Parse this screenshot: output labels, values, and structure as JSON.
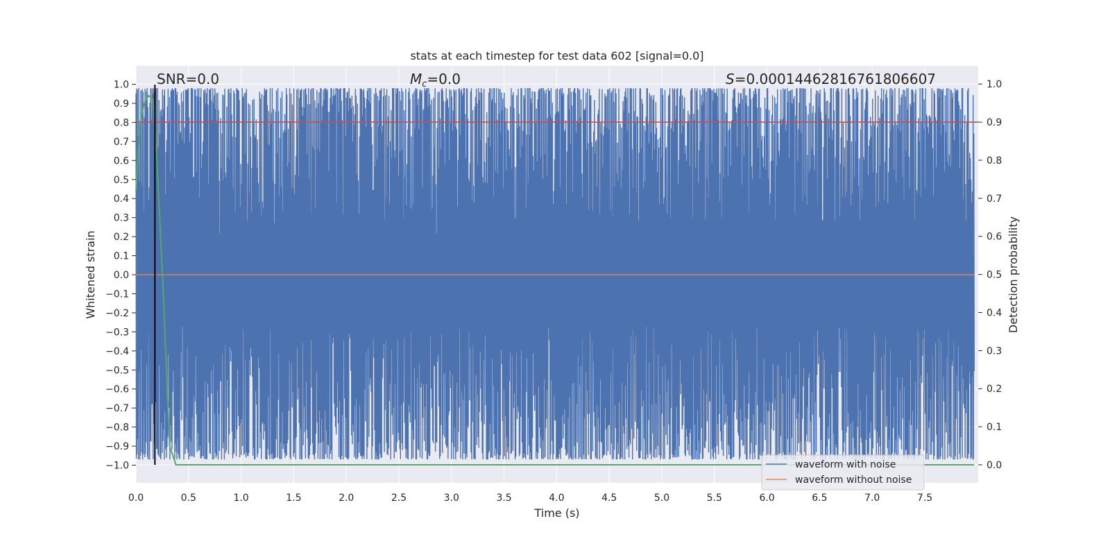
{
  "chart_data": {
    "type": "line",
    "title": "stats at each timestep for test data 602 [signal=0.0]",
    "xlabel": "Time (s)",
    "ylabel": "Whitened strain",
    "ylabel_right": "Detection probability",
    "xlim": [
      0.0,
      8.0
    ],
    "ylim": [
      -1.1,
      1.1
    ],
    "ylim_right": [
      -0.05,
      1.05
    ],
    "x_ticks": [
      "0.0",
      "0.5",
      "1.0",
      "1.5",
      "2.0",
      "2.5",
      "3.0",
      "3.5",
      "4.0",
      "4.5",
      "5.0",
      "5.5",
      "6.0",
      "6.5",
      "7.0",
      "7.5"
    ],
    "y_ticks": [
      "1.0",
      "0.9",
      "0.8",
      "0.7",
      "0.6",
      "0.5",
      "0.4",
      "0.3",
      "0.2",
      "0.1",
      "0.0",
      "−0.1",
      "−0.2",
      "−0.3",
      "−0.4",
      "−0.5",
      "−0.6",
      "−0.7",
      "−0.8",
      "−0.9",
      "−1.0"
    ],
    "y_right_ticks": [
      "1.0",
      "0.9",
      "0.8",
      "0.7",
      "0.6",
      "0.5",
      "0.4",
      "0.3",
      "0.2",
      "0.1",
      "0.0"
    ],
    "grid": true,
    "legend_position": "bottom-right",
    "annotations": {
      "snr": "SNR=0.0",
      "mc_symbol": "M",
      "mc_sub": "c",
      "mc_value": "=0.0",
      "s_symbol": "S",
      "s_value": "=0.0001446281676180660​7"
    },
    "series": [
      {
        "name": "waveform with noise",
        "color": "#4c72b0",
        "description": "dense noise filling range approx -1.0 to 1.0"
      },
      {
        "name": "waveform without noise",
        "color": "#dd8452",
        "x": [
          0.0,
          7.97
        ],
        "y": [
          0.0,
          0.0
        ]
      }
    ],
    "threshold_line": {
      "color": "#c44e52",
      "y_right": 0.9
    },
    "probability_series": {
      "color": "#55a868",
      "x": [
        0.0,
        0.04,
        0.08,
        0.12,
        0.16,
        0.2,
        0.26,
        0.32,
        0.38,
        7.97
      ],
      "y": [
        0.72,
        0.9,
        0.95,
        0.97,
        0.96,
        0.8,
        0.45,
        0.05,
        0.0,
        0.0
      ]
    },
    "marker_line": {
      "color": "#000000",
      "x": 0.18
    },
    "colors": {
      "background": "#eaeaf2",
      "grid": "#ffffff",
      "noise": "#4c72b0",
      "clean": "#dd8452",
      "threshold": "#c44e52",
      "probability": "#55a868"
    }
  }
}
